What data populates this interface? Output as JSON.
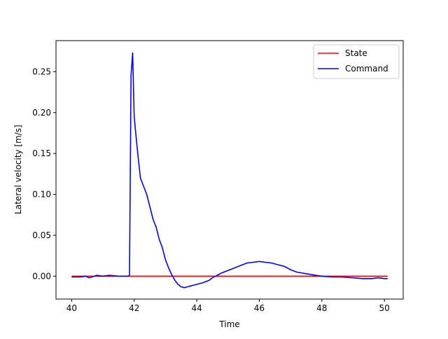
{
  "chart_data": {
    "type": "line",
    "title": "",
    "xlabel": "Time",
    "ylabel": "Lateral velocity [m/s]",
    "xlim": [
      39.5,
      50.6
    ],
    "ylim": [
      -0.028,
      0.288
    ],
    "xticks": [
      40,
      42,
      44,
      46,
      48,
      50
    ],
    "yticks": [
      0.0,
      0.05,
      0.1,
      0.15,
      0.2,
      0.25
    ],
    "xtick_labels": [
      "40",
      "42",
      "44",
      "46",
      "48",
      "50"
    ],
    "ytick_labels": [
      "0.00",
      "0.05",
      "0.10",
      "0.15",
      "0.20",
      "0.25"
    ],
    "grid": false,
    "legend_position": "top-right",
    "series": [
      {
        "name": "State",
        "color": "#ff0000",
        "x": [
          40.0,
          50.1
        ],
        "y": [
          0.0,
          0.0
        ]
      },
      {
        "name": "Command",
        "color": "#0000ff",
        "x": [
          40.0,
          40.3,
          40.45,
          40.55,
          40.65,
          40.8,
          41.0,
          41.2,
          41.5,
          41.8,
          41.85,
          41.9,
          41.95,
          42.0,
          42.05,
          42.1,
          42.2,
          42.3,
          42.4,
          42.5,
          42.6,
          42.7,
          42.8,
          42.9,
          43.0,
          43.1,
          43.2,
          43.3,
          43.4,
          43.5,
          43.6,
          43.7,
          43.8,
          43.9,
          44.0,
          44.2,
          44.4,
          44.5,
          44.6,
          44.7,
          44.8,
          45.0,
          45.2,
          45.4,
          45.6,
          45.8,
          46.0,
          46.2,
          46.4,
          46.6,
          46.8,
          47.0,
          47.2,
          47.5,
          47.8,
          48.0,
          48.3,
          48.6,
          49.0,
          49.3,
          49.6,
          49.8,
          50.0,
          50.1
        ],
        "y": [
          -0.001,
          -0.001,
          0.0,
          -0.002,
          -0.001,
          0.001,
          0.0,
          0.001,
          0.0,
          0.0,
          0.001,
          0.245,
          0.273,
          0.195,
          0.175,
          0.155,
          0.12,
          0.11,
          0.1,
          0.085,
          0.07,
          0.06,
          0.045,
          0.035,
          0.02,
          0.01,
          0.002,
          -0.005,
          -0.01,
          -0.013,
          -0.014,
          -0.013,
          -0.012,
          -0.011,
          -0.01,
          -0.008,
          -0.005,
          -0.002,
          0.0,
          0.002,
          0.004,
          0.007,
          0.01,
          0.013,
          0.016,
          0.017,
          0.018,
          0.017,
          0.016,
          0.014,
          0.012,
          0.008,
          0.005,
          0.003,
          0.001,
          0.0,
          -0.001,
          -0.001,
          -0.002,
          -0.003,
          -0.003,
          -0.002,
          -0.003,
          -0.003
        ]
      }
    ]
  }
}
